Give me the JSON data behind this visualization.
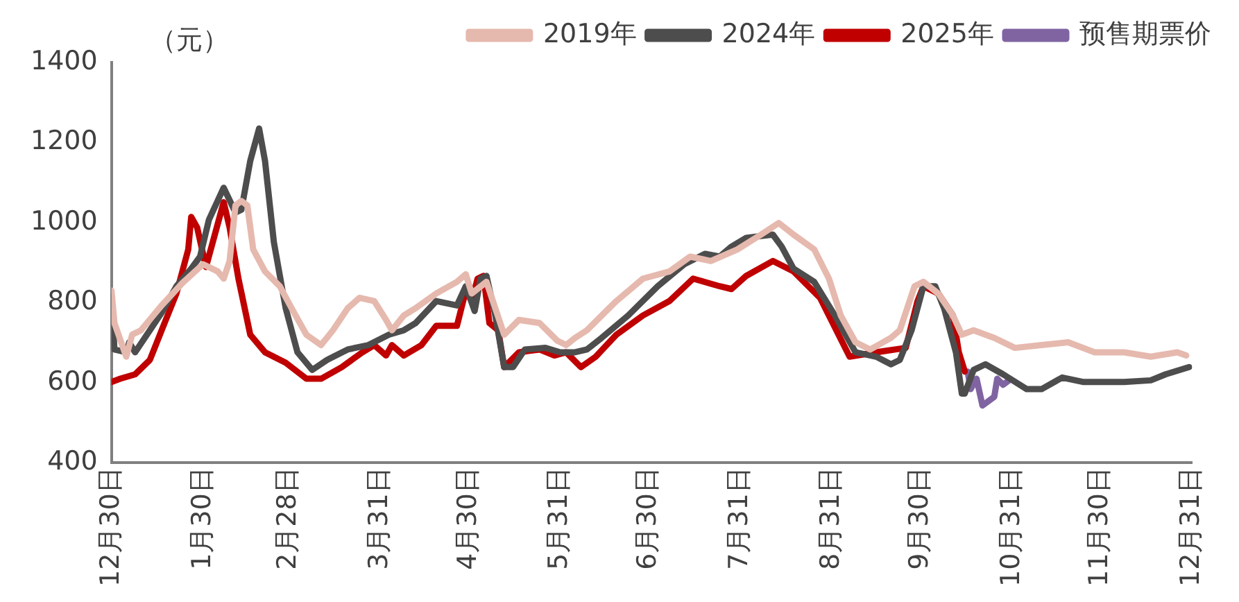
{
  "chart_data": {
    "type": "line",
    "ylabel": "（元）",
    "xlim": [
      "2024-12-30",
      "2025-12-31"
    ],
    "xticks": [
      {
        "value": "2024-12-30",
        "label": "12月30日"
      },
      {
        "value": "2025-01-30",
        "label": "1月30日"
      },
      {
        "value": "2025-02-28",
        "label": "2月28日"
      },
      {
        "value": "2025-03-31",
        "label": "3月31日"
      },
      {
        "value": "2025-04-30",
        "label": "4月30日"
      },
      {
        "value": "2025-05-31",
        "label": "5月31日"
      },
      {
        "value": "2025-06-30",
        "label": "6月30日"
      },
      {
        "value": "2025-07-31",
        "label": "7月31日"
      },
      {
        "value": "2025-08-31",
        "label": "8月31日"
      },
      {
        "value": "2025-09-30",
        "label": "9月30日"
      },
      {
        "value": "2025-10-31",
        "label": "10月31日"
      },
      {
        "value": "2025-11-30",
        "label": "11月30日"
      },
      {
        "value": "2025-12-31",
        "label": "12月31日"
      }
    ],
    "ylim": [
      400,
      1400
    ],
    "yticks": [
      400,
      600,
      800,
      1000,
      1200,
      1400
    ],
    "grid": false,
    "legend": "top",
    "marker": "none",
    "line_style": "solid",
    "series": [
      {
        "name": "2019年",
        "color": "#e6b9ae",
        "x": [
          "2024-12-30",
          "2024-12-31",
          "2025-01-04",
          "2025-01-06",
          "2025-01-09",
          "2025-01-16",
          "2025-01-23",
          "2025-01-30",
          "2025-02-04",
          "2025-02-06",
          "2025-02-08",
          "2025-02-10",
          "2025-02-12",
          "2025-02-14",
          "2025-02-16",
          "2025-02-20",
          "2025-02-25",
          "2025-03-01",
          "2025-03-06",
          "2025-03-11",
          "2025-03-15",
          "2025-03-20",
          "2025-03-24",
          "2025-03-29",
          "2025-04-02",
          "2025-04-04",
          "2025-04-08",
          "2025-04-12",
          "2025-04-19",
          "2025-04-26",
          "2025-04-29",
          "2025-05-01",
          "2025-05-06",
          "2025-05-09",
          "2025-05-12",
          "2025-05-17",
          "2025-05-24",
          "2025-05-30",
          "2025-06-02",
          "2025-06-05",
          "2025-06-09",
          "2025-06-19",
          "2025-06-28",
          "2025-07-07",
          "2025-07-14",
          "2025-07-21",
          "2025-07-30",
          "2025-08-07",
          "2025-08-13",
          "2025-08-18",
          "2025-08-25",
          "2025-08-30",
          "2025-09-03",
          "2025-09-08",
          "2025-09-13",
          "2025-09-20",
          "2025-09-23",
          "2025-09-28",
          "2025-10-01",
          "2025-10-06",
          "2025-10-11",
          "2025-10-14",
          "2025-10-18",
          "2025-10-25",
          "2025-11-01",
          "2025-11-10",
          "2025-11-19",
          "2025-11-28",
          "2025-12-08",
          "2025-12-17",
          "2025-12-26",
          "2025-12-29"
        ],
        "values": [
          830,
          749,
          665,
          720,
          731,
          793,
          849,
          896,
          878,
          860,
          904,
          1043,
          1054,
          1043,
          933,
          878,
          841,
          786,
          720,
          694,
          731,
          786,
          812,
          804,
          757,
          731,
          768,
          786,
          823,
          852,
          871,
          823,
          852,
          786,
          720,
          757,
          749,
          705,
          694,
          712,
          731,
          804,
          860,
          878,
          915,
          904,
          933,
          970,
          999,
          970,
          933,
          860,
          768,
          701,
          683,
          712,
          731,
          841,
          852,
          823,
          768,
          720,
          731,
          712,
          687,
          694,
          701,
          676,
          676,
          665,
          676,
          668
        ]
      },
      {
        "name": "2024年",
        "color": "#4d4d4d",
        "x": [
          "2024-12-30",
          "2024-12-31",
          "2025-01-04",
          "2025-01-05",
          "2025-01-07",
          "2025-01-12",
          "2025-01-16",
          "2025-01-21",
          "2025-01-26",
          "2025-01-29",
          "2025-02-01",
          "2025-02-06",
          "2025-02-10",
          "2025-02-12",
          "2025-02-15",
          "2025-02-18",
          "2025-02-20",
          "2025-02-23",
          "2025-02-27",
          "2025-03-03",
          "2025-03-08",
          "2025-03-13",
          "2025-03-20",
          "2025-03-27",
          "2025-04-03",
          "2025-04-08",
          "2025-04-12",
          "2025-04-19",
          "2025-04-26",
          "2025-04-29",
          "2025-05-02",
          "2025-05-04",
          "2025-05-06",
          "2025-05-09",
          "2025-05-12",
          "2025-05-15",
          "2025-05-19",
          "2025-05-26",
          "2025-05-31",
          "2025-06-05",
          "2025-06-09",
          "2025-06-14",
          "2025-06-23",
          "2025-07-03",
          "2025-07-12",
          "2025-07-19",
          "2025-07-24",
          "2025-07-28",
          "2025-08-02",
          "2025-08-11",
          "2025-08-14",
          "2025-08-18",
          "2025-08-25",
          "2025-09-01",
          "2025-09-08",
          "2025-09-15",
          "2025-09-20",
          "2025-09-23",
          "2025-09-27",
          "2025-10-01",
          "2025-10-05",
          "2025-10-08",
          "2025-10-12",
          "2025-10-14",
          "2025-10-15",
          "2025-10-18",
          "2025-10-22",
          "2025-10-28",
          "2025-11-05",
          "2025-11-10",
          "2025-11-17",
          "2025-11-24",
          "2025-12-08",
          "2025-12-17",
          "2025-12-22",
          "2025-12-30"
        ],
        "values": [
          812,
          683,
          676,
          701,
          676,
          731,
          775,
          841,
          885,
          915,
          1007,
          1087,
          1025,
          1032,
          1154,
          1235,
          1154,
          951,
          786,
          676,
          632,
          657,
          683,
          694,
          720,
          731,
          749,
          804,
          793,
          841,
          779,
          860,
          867,
          768,
          639,
          639,
          683,
          687,
          676,
          676,
          683,
          712,
          768,
          841,
          896,
          922,
          915,
          940,
          962,
          970,
          940,
          885,
          852,
          768,
          676,
          665,
          646,
          657,
          731,
          841,
          841,
          786,
          676,
          573,
          573,
          632,
          646,
          621,
          584,
          584,
          613,
          602,
          602,
          606,
          621,
          639
        ]
      },
      {
        "name": "2025年",
        "color": "#c00000",
        "x": [
          "2024-12-30",
          "2025-01-02",
          "2025-01-07",
          "2025-01-12",
          "2025-01-16",
          "2025-01-21",
          "2025-01-25",
          "2025-01-26",
          "2025-01-28",
          "2025-01-31",
          "2025-02-03",
          "2025-02-06",
          "2025-02-08",
          "2025-02-11",
          "2025-02-15",
          "2025-02-20",
          "2025-02-27",
          "2025-03-06",
          "2025-03-11",
          "2025-03-18",
          "2025-03-25",
          "2025-03-29",
          "2025-04-02",
          "2025-04-04",
          "2025-04-08",
          "2025-04-14",
          "2025-04-19",
          "2025-04-26",
          "2025-04-29",
          "2025-05-01",
          "2025-05-03",
          "2025-05-05",
          "2025-05-07",
          "2025-05-10",
          "2025-05-12",
          "2025-05-17",
          "2025-05-24",
          "2025-05-29",
          "2025-06-02",
          "2025-06-07",
          "2025-06-12",
          "2025-06-19",
          "2025-06-28",
          "2025-07-07",
          "2025-07-15",
          "2025-07-24",
          "2025-07-28",
          "2025-08-02",
          "2025-08-11",
          "2025-08-18",
          "2025-08-27",
          "2025-09-06",
          "2025-09-15",
          "2025-09-25",
          "2025-09-29",
          "2025-10-01",
          "2025-10-06",
          "2025-10-11",
          "2025-10-13",
          "2025-10-15"
        ],
        "values": [
          602,
          610,
          621,
          657,
          731,
          823,
          933,
          1014,
          988,
          889,
          970,
          1051,
          988,
          860,
          720,
          676,
          650,
          610,
          610,
          639,
          676,
          694,
          668,
          694,
          668,
          694,
          742,
          742,
          830,
          804,
          860,
          867,
          749,
          731,
          639,
          676,
          683,
          668,
          676,
          639,
          665,
          720,
          768,
          804,
          860,
          841,
          834,
          867,
          904,
          878,
          812,
          665,
          676,
          687,
          804,
          841,
          823,
          768,
          676,
          628
        ]
      },
      {
        "name": "预售期票价",
        "color": "#8064a2",
        "x": [
          "2025-10-16",
          "2025-10-17",
          "2025-10-19",
          "2025-10-21",
          "2025-10-25",
          "2025-10-26",
          "2025-10-28",
          "2025-10-30"
        ],
        "values": [
          628,
          584,
          610,
          543,
          565,
          610,
          595,
          606
        ]
      }
    ]
  }
}
